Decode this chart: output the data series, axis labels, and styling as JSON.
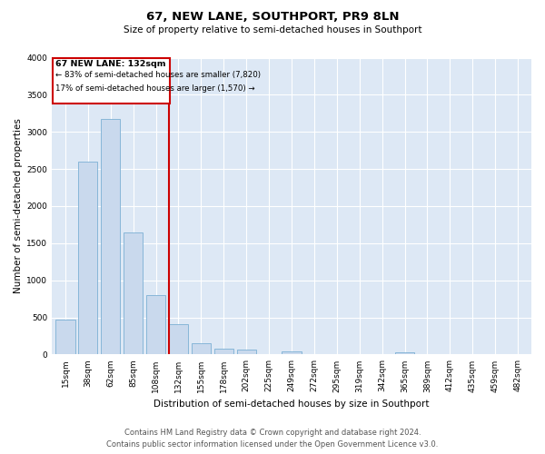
{
  "title": "67, NEW LANE, SOUTHPORT, PR9 8LN",
  "subtitle": "Size of property relative to semi-detached houses in Southport",
  "xlabel": "Distribution of semi-detached houses by size in Southport",
  "ylabel": "Number of semi-detached properties",
  "footer_line1": "Contains HM Land Registry data © Crown copyright and database right 2024.",
  "footer_line2": "Contains public sector information licensed under the Open Government Licence v3.0.",
  "bin_labels": [
    "15sqm",
    "38sqm",
    "62sqm",
    "85sqm",
    "108sqm",
    "132sqm",
    "155sqm",
    "178sqm",
    "202sqm",
    "225sqm",
    "249sqm",
    "272sqm",
    "295sqm",
    "319sqm",
    "342sqm",
    "365sqm",
    "389sqm",
    "412sqm",
    "435sqm",
    "459sqm",
    "482sqm"
  ],
  "bar_values": [
    470,
    2600,
    3180,
    1640,
    800,
    410,
    150,
    80,
    70,
    0,
    40,
    0,
    0,
    0,
    0,
    30,
    0,
    0,
    0,
    0,
    0
  ],
  "property_label": "67 NEW LANE: 132sqm",
  "annotation_line1": "← 83% of semi-detached houses are smaller (7,820)",
  "annotation_line2": "17% of semi-detached houses are larger (1,570) →",
  "bar_color": "#c9d9ed",
  "bar_edge_color": "#7bafd4",
  "vline_color": "#cc0000",
  "box_edge_color": "#cc0000",
  "background_color": "#dde8f5",
  "ylim": [
    0,
    4000
  ],
  "vline_bin_index": 5,
  "title_fontsize": 9.5,
  "subtitle_fontsize": 7.5,
  "xlabel_fontsize": 7.5,
  "ylabel_fontsize": 7.5,
  "tick_fontsize": 6.5,
  "footer_fontsize": 6.0
}
